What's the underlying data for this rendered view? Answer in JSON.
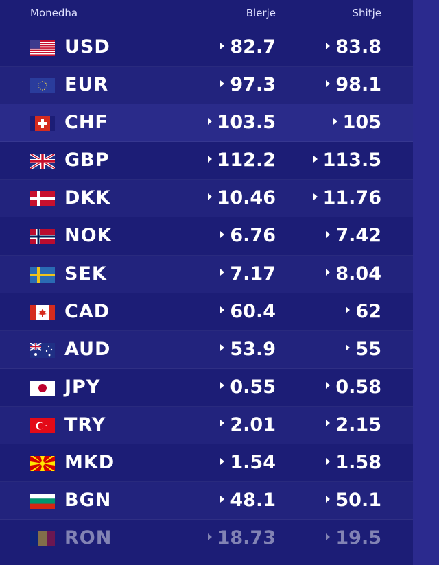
{
  "header": {
    "currency": "Monedha",
    "buy": "Blerje",
    "sell": "Shitje"
  },
  "rows": [
    {
      "code": "USD",
      "buy": "82.7",
      "sell": "83.8",
      "flag": "us-flag-icon"
    },
    {
      "code": "EUR",
      "buy": "97.3",
      "sell": "98.1",
      "flag": "eu-flag-icon"
    },
    {
      "code": "CHF",
      "buy": "103.5",
      "sell": "105",
      "flag": "ch-flag-icon"
    },
    {
      "code": "GBP",
      "buy": "112.2",
      "sell": "113.5",
      "flag": "gb-flag-icon"
    },
    {
      "code": "DKK",
      "buy": "10.46",
      "sell": "11.76",
      "flag": "dk-flag-icon"
    },
    {
      "code": "NOK",
      "buy": "6.76",
      "sell": "7.42",
      "flag": "no-flag-icon"
    },
    {
      "code": "SEK",
      "buy": "7.17",
      "sell": "8.04",
      "flag": "se-flag-icon"
    },
    {
      "code": "CAD",
      "buy": "60.4",
      "sell": "62",
      "flag": "ca-flag-icon"
    },
    {
      "code": "AUD",
      "buy": "53.9",
      "sell": "55",
      "flag": "au-flag-icon"
    },
    {
      "code": "JPY",
      "buy": "0.55",
      "sell": "0.58",
      "flag": "jp-flag-icon"
    },
    {
      "code": "TRY",
      "buy": "2.01",
      "sell": "2.15",
      "flag": "tr-flag-icon"
    },
    {
      "code": "MKD",
      "buy": "1.54",
      "sell": "1.58",
      "flag": "mk-flag-icon"
    },
    {
      "code": "BGN",
      "buy": "48.1",
      "sell": "50.1",
      "flag": "bg-flag-icon"
    },
    {
      "code": "RON",
      "buy": "18.73",
      "sell": "19.5",
      "flag": "ro-flag-icon"
    }
  ],
  "colors": {
    "background": "#1c1d76",
    "highlight_row": "#2a2b8a",
    "sidebar": "#2b2a8e",
    "text": "#ffffff"
  }
}
